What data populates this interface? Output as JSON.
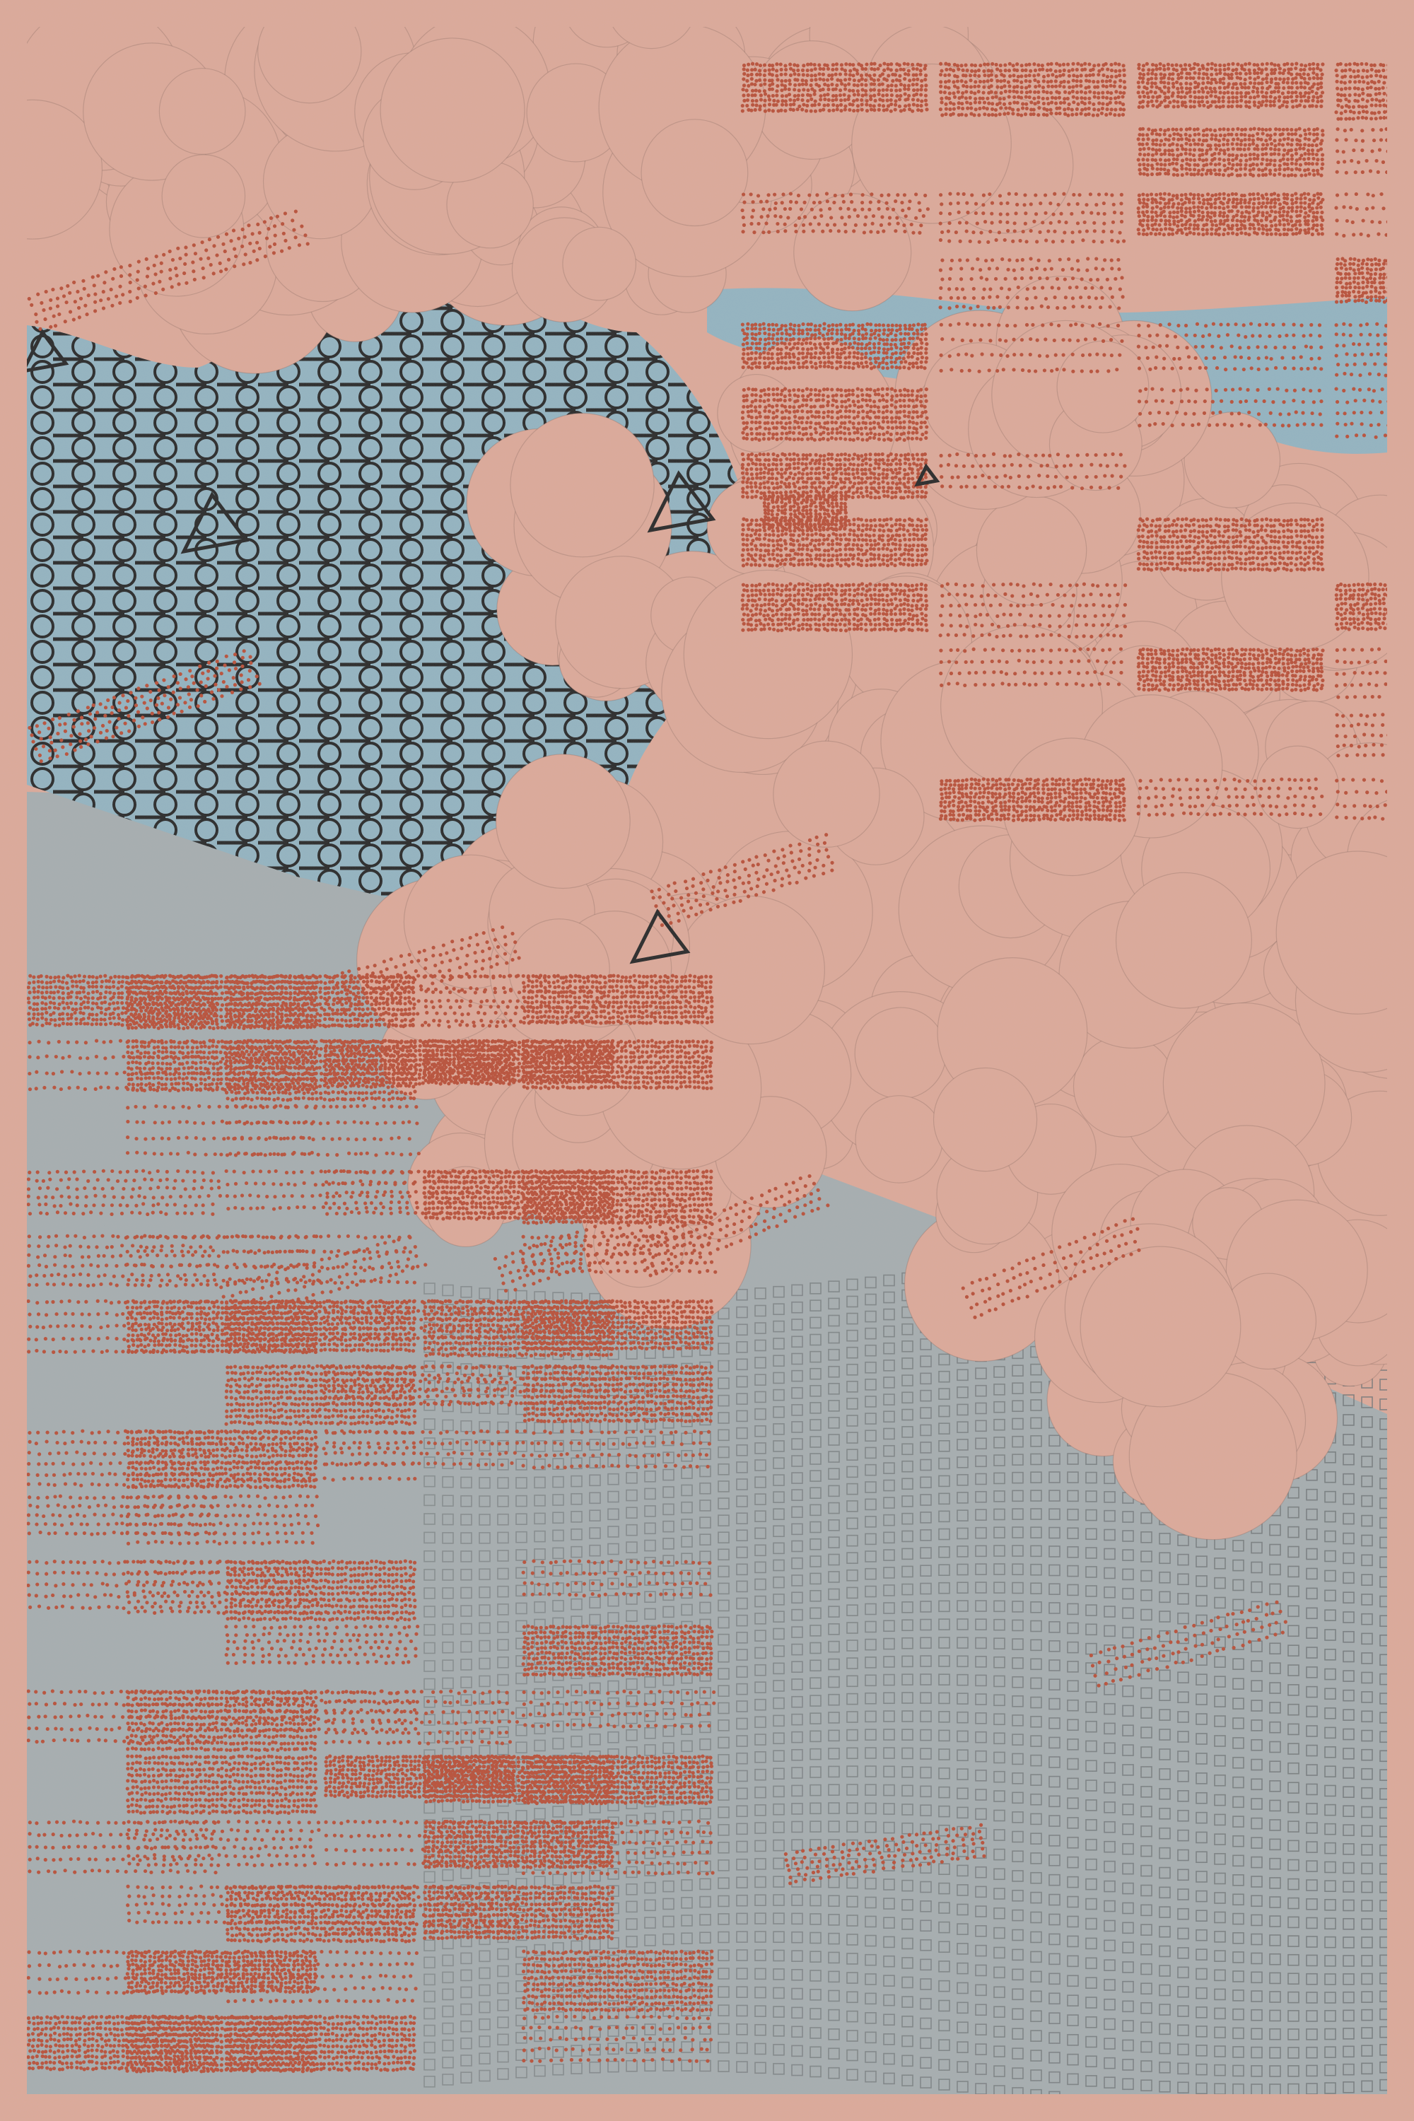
{
  "artwork": {
    "colors": {
      "background": "#dca999",
      "gray_field": "#a6adaf",
      "blue_field": "#93b3c0",
      "dot_red": "#b9513a",
      "ink": "#2a2a2a",
      "square_ink": "#6f7476"
    },
    "motifs": [
      "circle-chain-grid",
      "dot-hatch-blocks",
      "square-grid-waves",
      "cloud-clusters",
      "outline-triangles"
    ]
  }
}
